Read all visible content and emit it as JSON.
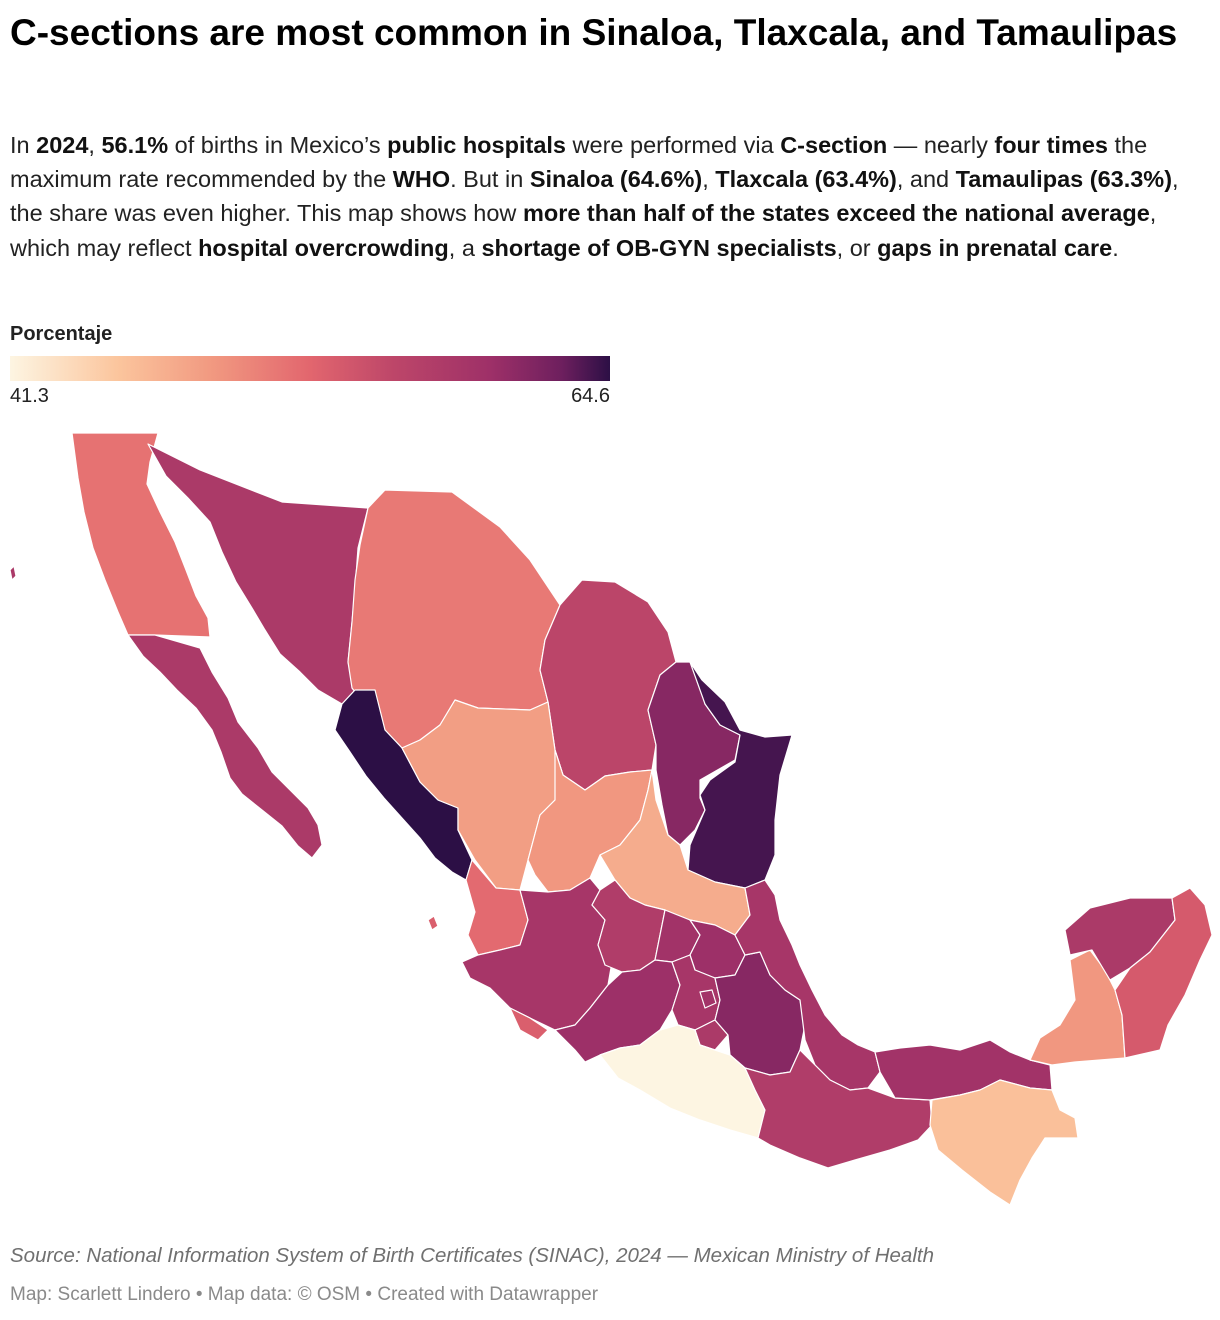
{
  "title": "C-sections are most common in Sinaloa, Tlaxcala, and Tamaulipas",
  "description": {
    "s1": "In ",
    "b1": "2024",
    "s2": ", ",
    "b2": "56.1%",
    "s3": " of births in Mexico’s ",
    "b3": "public hospitals",
    "s4": " were performed via ",
    "b4": "C-section",
    "s5": " — nearly ",
    "b5": "four times",
    "s6": " the maximum rate recommended by the ",
    "b6": "WHO",
    "s7": ". But in ",
    "b7": "Sinaloa (64.6%)",
    "s8": ", ",
    "b8": "Tlaxcala (63.4%)",
    "s9": ", and ",
    "b9": "Tamaulipas (63.3%)",
    "s10": ", the share was even higher. This map shows how ",
    "b10": "more than half of the states exceed the national average",
    "s11": ", which may reflect ",
    "b11": "hospital overcrowding",
    "s12": ", a ",
    "b12": "shortage of OB-GYN specialists",
    "s13": ", or ",
    "b13": "gaps in prenatal care",
    "s14": "."
  },
  "legend": {
    "title": "Porcentaje",
    "min_label": "41.3",
    "max_label": "64.6",
    "min": 41.3,
    "max": 64.6,
    "colors": [
      "#fdf5e2",
      "#fbc59d",
      "#f19880",
      "#e2666e",
      "#bd4669",
      "#9e3068",
      "#6d1f5e",
      "#2c0f45"
    ]
  },
  "map_data": {
    "type": "choropleth",
    "regions": [
      {
        "id": "baja-california",
        "name": "Baja California",
        "value": 50.5
      },
      {
        "id": "baja-california-sur",
        "name": "Baja California Sur",
        "value": 56.5
      },
      {
        "id": "sonora",
        "name": "Sonora",
        "value": 56.5
      },
      {
        "id": "chihuahua",
        "name": "Chihuahua",
        "value": 50.0
      },
      {
        "id": "coahuila",
        "name": "Coahuila",
        "value": 54.8
      },
      {
        "id": "nuevo-leon",
        "name": "Nuevo León",
        "value": 59.5
      },
      {
        "id": "tamaulipas",
        "name": "Tamaulipas",
        "value": 63.3
      },
      {
        "id": "sinaloa",
        "name": "Sinaloa",
        "value": 64.6
      },
      {
        "id": "durango",
        "name": "Durango",
        "value": 47.5
      },
      {
        "id": "zacatecas",
        "name": "Zacatecas",
        "value": 48.0
      },
      {
        "id": "san-luis-potosi",
        "name": "San Luis Potosí",
        "value": 46.5
      },
      {
        "id": "nayarit",
        "name": "Nayarit",
        "value": 51.0
      },
      {
        "id": "aguascalientes",
        "name": "Aguascalientes",
        "value": 57.5
      },
      {
        "id": "jalisco",
        "name": "Jalisco",
        "value": 57.0
      },
      {
        "id": "guanajuato",
        "name": "Guanajuato",
        "value": 56.0
      },
      {
        "id": "queretaro",
        "name": "Querétaro",
        "value": 57.5
      },
      {
        "id": "hidalgo",
        "name": "Hidalgo",
        "value": 58.0
      },
      {
        "id": "colima",
        "name": "Colima",
        "value": 52.0
      },
      {
        "id": "michoacan",
        "name": "Michoacán",
        "value": 58.0
      },
      {
        "id": "mexico",
        "name": "Estado de México",
        "value": 57.0
      },
      {
        "id": "cdmx",
        "name": "Ciudad de México",
        "value": 57.5
      },
      {
        "id": "morelos",
        "name": "Morelos",
        "value": 56.5
      },
      {
        "id": "tlaxcala",
        "name": "Tlaxcala",
        "value": 63.4
      },
      {
        "id": "puebla",
        "name": "Puebla",
        "value": 59.5
      },
      {
        "id": "veracruz",
        "name": "Veracruz",
        "value": 57.0
      },
      {
        "id": "guerrero",
        "name": "Guerrero",
        "value": 41.3
      },
      {
        "id": "oaxaca",
        "name": "Oaxaca",
        "value": 56.0
      },
      {
        "id": "tabasco",
        "name": "Tabasco",
        "value": 57.5
      },
      {
        "id": "chiapas",
        "name": "Chiapas",
        "value": 45.0
      },
      {
        "id": "campeche",
        "name": "Campeche",
        "value": 48.0
      },
      {
        "id": "yucatan",
        "name": "Yucatán",
        "value": 56.5
      },
      {
        "id": "quintana-roo",
        "name": "Quintana Roo",
        "value": 52.5
      }
    ]
  },
  "source": "Source: National Information System of Birth Certificates (SINAC), 2024 — Mexican Ministry of Health",
  "credits": "Map: Scarlett Lindero • Map data: © OSM  • Created with Datawrapper"
}
